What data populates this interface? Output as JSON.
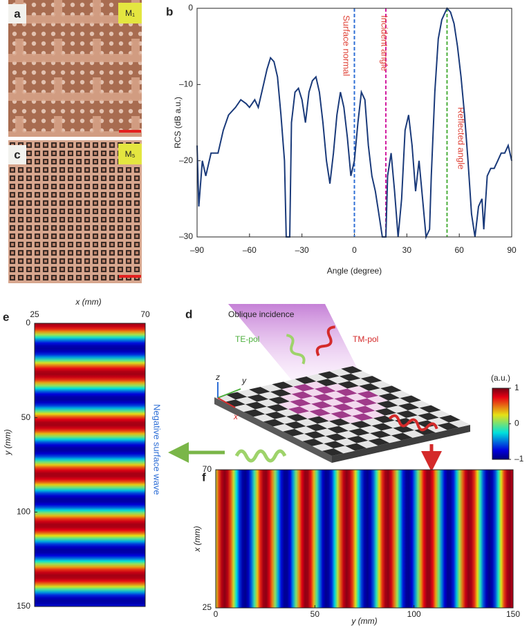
{
  "panels": {
    "a": {
      "label": "a",
      "sample": "M₁"
    },
    "c": {
      "label": "c",
      "sample": "M₅"
    },
    "d": {
      "label": "d",
      "title": "Oblique incidence",
      "te": "TE-pol",
      "tm": "TM-pol",
      "axes": [
        "z",
        "y",
        "x"
      ]
    },
    "e_note": "Negative surface wave"
  },
  "chart_data": [
    {
      "type": "line",
      "panel_label": "b",
      "xlabel": "Angle (degree)",
      "ylabel": "RCS (dB a.u.)",
      "x": [
        -90,
        -89,
        -87,
        -85,
        -82,
        -78,
        -75,
        -72,
        -68,
        -65,
        -62,
        -60,
        -57,
        -55,
        -52,
        -50,
        -48,
        -46,
        -44,
        -42,
        -40,
        -39,
        -37,
        -36,
        -34,
        -32,
        -30,
        -28,
        -26,
        -24,
        -22,
        -20,
        -18,
        -16,
        -14,
        -12,
        -10,
        -8,
        -6,
        -4,
        -2,
        0,
        2,
        4,
        6,
        8,
        10,
        12,
        14,
        16,
        18,
        19,
        21,
        23,
        25,
        27,
        29,
        31,
        33,
        35,
        37,
        39,
        41,
        43,
        44,
        46,
        48,
        50,
        52,
        53,
        55,
        57,
        59,
        61,
        63,
        65,
        67,
        69,
        71,
        73,
        74,
        76,
        78,
        80,
        82,
        84,
        86,
        88,
        90
      ],
      "series": [
        {
          "name": "RCS",
          "color": "#1a3a7a",
          "values": [
            -18,
            -26,
            -20,
            -22,
            -19,
            -19,
            -16,
            -14,
            -13,
            -12,
            -12.5,
            -13,
            -12,
            -13,
            -10,
            -8,
            -6.5,
            -7,
            -9,
            -14,
            -20,
            -30,
            -30,
            -15,
            -11,
            -10.5,
            -12,
            -15,
            -11,
            -9.5,
            -9,
            -11,
            -15,
            -20,
            -23,
            -19,
            -14,
            -11,
            -13,
            -17,
            -22,
            -20,
            -15,
            -11,
            -12,
            -18,
            -22,
            -24,
            -27,
            -30,
            -30,
            -22,
            -19,
            -24,
            -30,
            -25,
            -16,
            -14,
            -18,
            -24,
            -20,
            -25,
            -30,
            -29,
            -22,
            -11,
            -4,
            -1.5,
            -0.5,
            0,
            -0.5,
            -2,
            -5,
            -9,
            -14,
            -20,
            -27,
            -30,
            -26,
            -25,
            -29,
            -22,
            -21,
            -21,
            -20,
            -19,
            -19,
            -18,
            -20
          ]
        }
      ],
      "xlim": [
        -90,
        90
      ],
      "xticks": [
        {
          "value": -90,
          "label": "–90"
        },
        {
          "value": -60,
          "label": "–60"
        },
        {
          "value": -30,
          "label": "–30"
        },
        0,
        30,
        60,
        90
      ],
      "ylim": [
        -30,
        0
      ],
      "yticks": [
        {
          "value": -30,
          "label": "–30"
        },
        {
          "value": -20,
          "label": "–20"
        },
        {
          "value": -10,
          "label": "–10"
        },
        0
      ],
      "annotations": [
        {
          "x": 0,
          "label": "Surface normal",
          "color": "#2f6fd6"
        },
        {
          "x": 18,
          "label": "Incident angle",
          "color": "#d21ea0"
        },
        {
          "x": 53,
          "label": "Reflected angle",
          "color": "#4caf3c"
        }
      ],
      "annotation_text_color": "#e0453a"
    },
    {
      "type": "heatmap",
      "panel_label": "e",
      "xlabel": "x (mm)",
      "ylabel": "y (mm)",
      "xlim": [
        25,
        70
      ],
      "xticks": [
        25,
        70
      ],
      "ylim": [
        0,
        150
      ],
      "yticks": [
        0,
        50,
        100,
        150
      ],
      "stripes": "horizontal"
    },
    {
      "type": "heatmap",
      "panel_label": "f",
      "xlabel": "y (mm)",
      "ylabel": "x (mm)",
      "xlim": [
        0,
        150
      ],
      "xticks": [
        0,
        50,
        100,
        150
      ],
      "ylim": [
        25,
        70
      ],
      "yticks": [
        25,
        70
      ],
      "stripes": "vertical",
      "colorbar": {
        "label": "(a.u.)",
        "lim": [
          -1,
          1
        ],
        "ticks": [
          1,
          0,
          {
            "value": -1,
            "label": "–1"
          }
        ]
      }
    }
  ]
}
